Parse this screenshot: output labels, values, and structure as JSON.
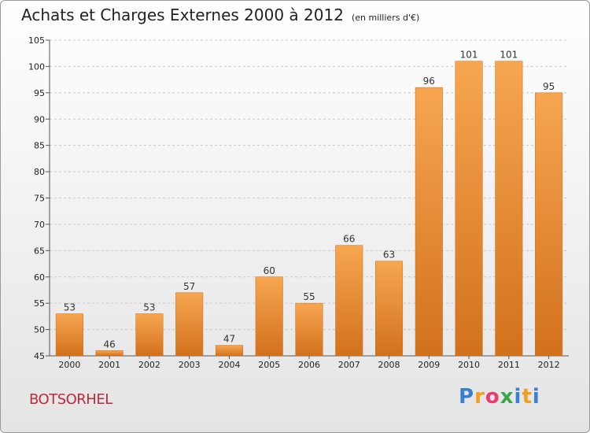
{
  "page": {
    "title": "Achats et Charges Externes 2000 à 2012",
    "unit_note": "(en milliers d'€)",
    "commune": "BOTSORHEL",
    "logo_text": "Proxiti"
  },
  "logo_letters": [
    {
      "ch": "P",
      "color": "#3a7fd0"
    },
    {
      "ch": "r",
      "color": "#f0a020"
    },
    {
      "ch": "o",
      "color": "#e83c6a"
    },
    {
      "ch": "x",
      "color": "#3aa84a"
    },
    {
      "ch": "i",
      "color": "#3a7fd0"
    },
    {
      "ch": "t",
      "color": "#f0a020"
    },
    {
      "ch": "i",
      "color": "#3a7fd0"
    }
  ],
  "colors": {
    "bar_top": "#f7a650",
    "bar_bottom": "#d2711c",
    "grid": "#c8c8c8",
    "title": "#222222",
    "commune": "#c0283c"
  },
  "chart_data": {
    "type": "bar",
    "title": "Achats et Charges Externes 2000 à 2012",
    "subtitle": "(en milliers d'€)",
    "xlabel": "",
    "ylabel": "",
    "categories": [
      "2000",
      "2001",
      "2002",
      "2003",
      "2004",
      "2005",
      "2006",
      "2007",
      "2008",
      "2009",
      "2010",
      "2011",
      "2012"
    ],
    "values": [
      53,
      46,
      53,
      57,
      47,
      60,
      55,
      66,
      63,
      96,
      101,
      101,
      95
    ],
    "ylim": [
      45,
      105
    ],
    "yticks": [
      45,
      50,
      55,
      60,
      65,
      70,
      75,
      80,
      85,
      90,
      95,
      100,
      105
    ],
    "grid": "horizontal dashed"
  }
}
